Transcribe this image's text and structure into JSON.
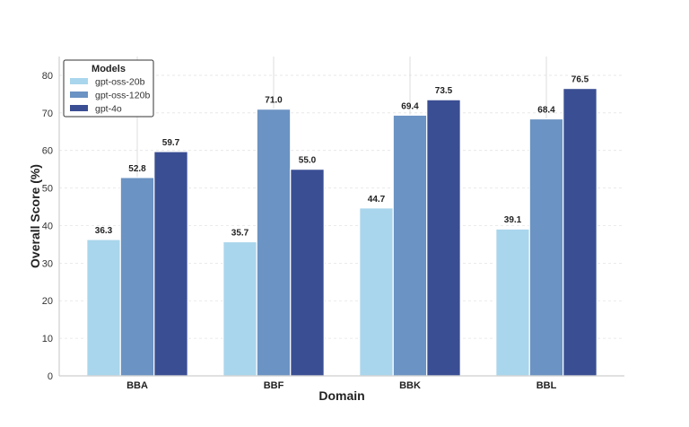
{
  "chart_data": {
    "type": "bar",
    "title": "",
    "xlabel": "Domain",
    "ylabel": "Overall Score (%)",
    "categories": [
      "BBA",
      "BBF",
      "BBK",
      "BBL"
    ],
    "series": [
      {
        "name": "gpt-oss-20b",
        "values": [
          36.3,
          35.7,
          44.7,
          39.1
        ],
        "color": "#a9d6ec"
      },
      {
        "name": "gpt-oss-120b",
        "values": [
          52.8,
          71.0,
          69.4,
          68.4
        ],
        "color": "#6b93c3"
      },
      {
        "name": "gpt-4o",
        "values": [
          59.7,
          55.0,
          73.5,
          76.5
        ],
        "color": "#3a4e93"
      }
    ],
    "ylim": [
      0,
      85
    ],
    "yticks": [
      0,
      10,
      20,
      30,
      40,
      50,
      60,
      70,
      80
    ],
    "grid": true,
    "legend": {
      "title": "Models",
      "placement": "top-left"
    },
    "data_labels": true
  }
}
